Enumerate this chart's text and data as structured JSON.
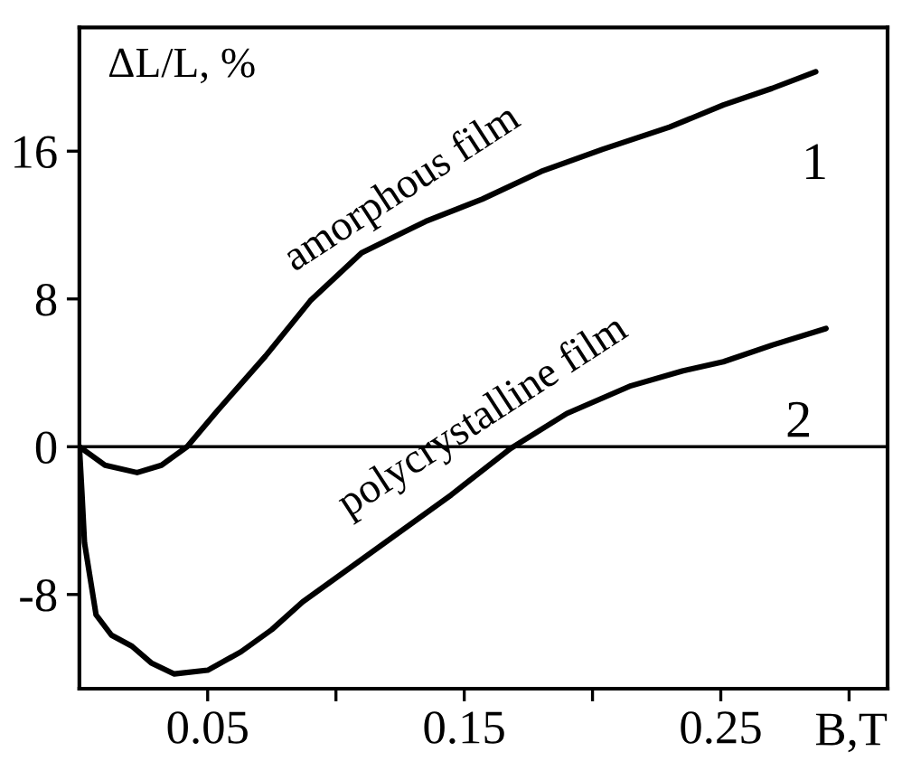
{
  "chart_data": {
    "type": "line",
    "xlabel": "B,T",
    "ylabel": "ΔL/L, %",
    "series": [
      {
        "color": "#000000",
        "x": [
          0,
          0.01,
          0.0225,
          0.032,
          0.042,
          0.0535,
          0.0725,
          0.09,
          0.11,
          0.135,
          0.157,
          0.18,
          0.204,
          0.23,
          0.251,
          0.27,
          0.287
        ],
        "values": [
          0,
          -1.0,
          -1.4,
          -1.0,
          0,
          1.9,
          4.9,
          7.9,
          10.5,
          12.2,
          13.4,
          14.9,
          16.1,
          17.3,
          18.5,
          19.4,
          20.3
        ]
      },
      {
        "color": "#000000",
        "x": [
          0,
          0.001,
          0.002,
          0.0065,
          0.0125,
          0.0205,
          0.028,
          0.037,
          0.05,
          0.063,
          0.075,
          0.087,
          0.105,
          0.122,
          0.145,
          0.168,
          0.19,
          0.215,
          0.235,
          0.251,
          0.27,
          0.291
        ],
        "values": [
          0,
          -2.5,
          -5.2,
          -9.1,
          -10.2,
          -10.8,
          -11.7,
          -12.3,
          -12.1,
          -11.1,
          -9.9,
          -8.4,
          -6.6,
          -4.9,
          -2.6,
          -0.1,
          1.8,
          3.3,
          4.1,
          4.6,
          5.5,
          6.4
        ]
      }
    ],
    "xlim": [
      0,
      0.315
    ],
    "ylim": [
      -13.1,
      22.7
    ],
    "xticks": [
      0.05,
      {
        "value": 0.1,
        "label": null
      },
      0.15,
      {
        "value": 0.2,
        "label": null
      },
      0.25,
      {
        "value": 0.3,
        "label": null
      }
    ],
    "yticks": [
      -8,
      0,
      8,
      16
    ],
    "ref_lines": [
      {
        "axis": "y",
        "value": 0,
        "color": "#000000"
      }
    ],
    "annotations": [
      "amorphous film",
      "polycrystalline film",
      "1",
      "2"
    ],
    "grid": false,
    "legend": false
  }
}
